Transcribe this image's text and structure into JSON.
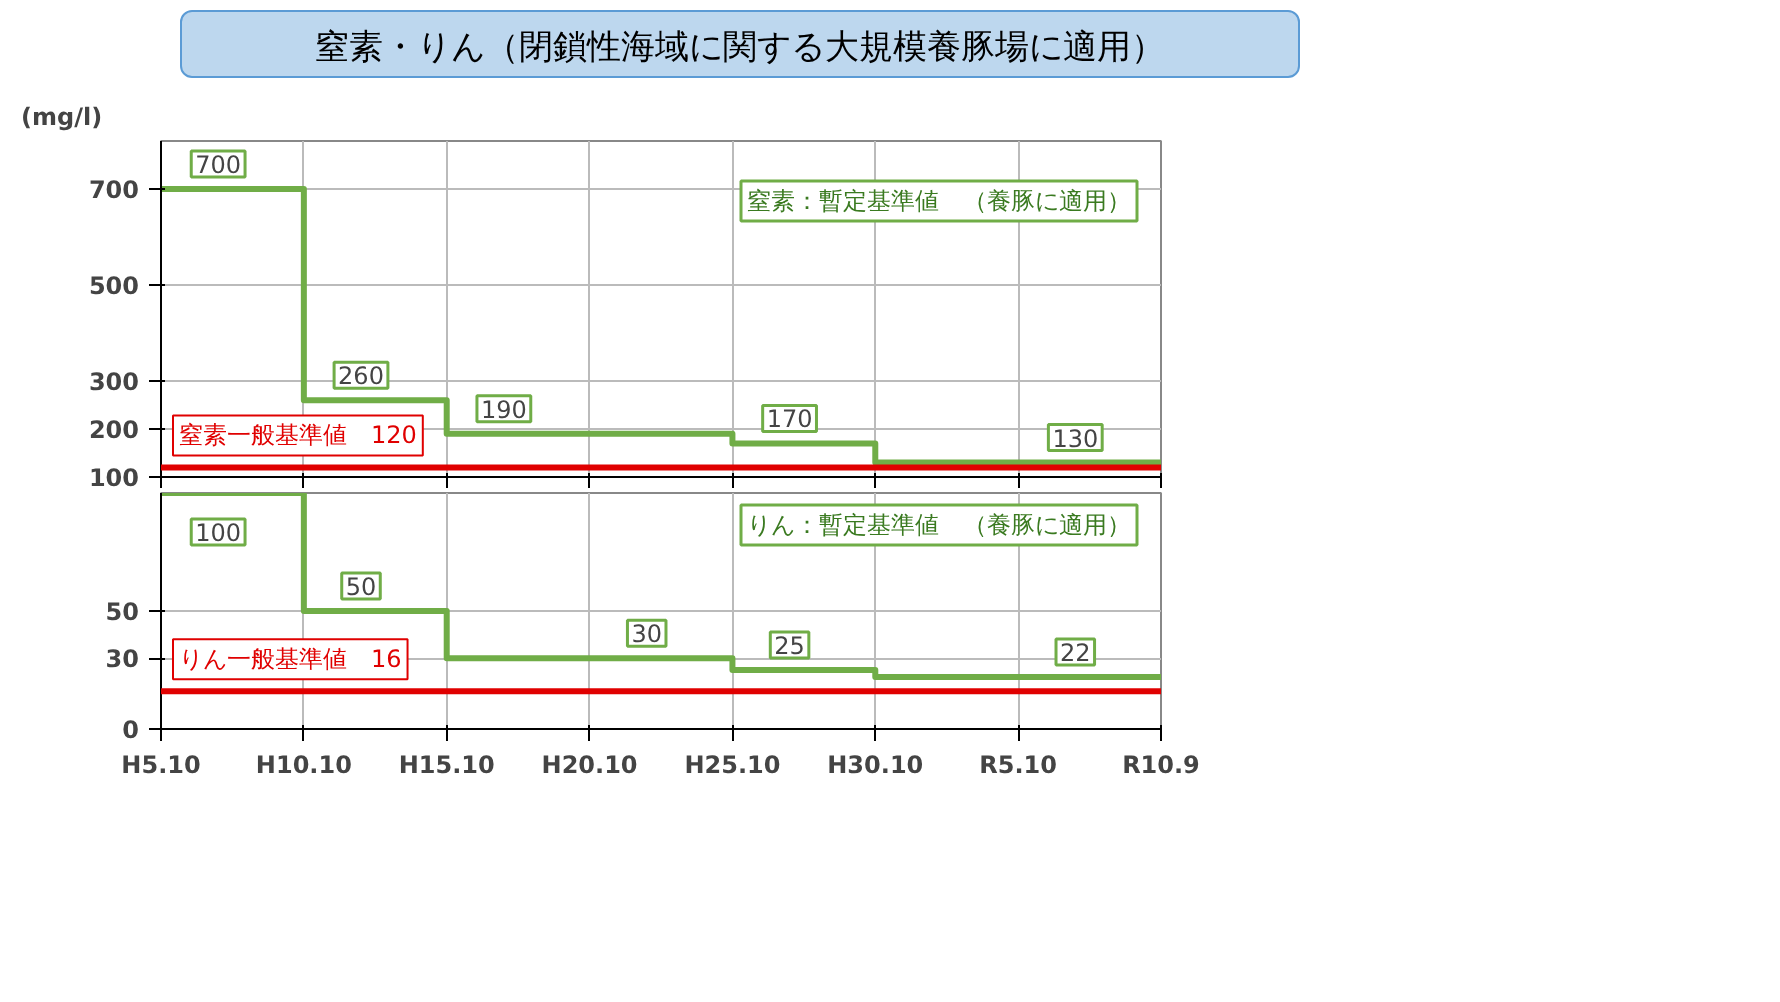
{
  "chart_data": [
    {
      "type": "step",
      "title": "窒素・りん（閉鎖性海域に関する大規模養豚場に適用）",
      "ylabel": "(mg/l)",
      "categories": [
        null,
        null,
        null,
        null,
        null,
        null,
        null,
        null
      ],
      "series": [
        {
          "name": "窒素：暫定基準値　（養豚に適用）",
          "color": "#70ad47",
          "values": [
            700,
            260,
            190,
            190,
            170,
            130,
            130,
            130
          ],
          "value_labels": [
            "700",
            "260",
            "190",
            null,
            "170",
            null,
            "130",
            null
          ]
        }
      ],
      "ylim": [
        100,
        800
      ],
      "yticks": [
        100,
        200,
        300,
        500,
        700
      ],
      "tick_labels": "y",
      "grid": true,
      "legend": false,
      "ref_lines": [
        {
          "axis": "y",
          "value": 120,
          "label": "窒素一般基準値　120",
          "color": "#e00000"
        }
      ]
    },
    {
      "type": "step",
      "categories": [
        "H5.10",
        "H10.10",
        "H15.10",
        "H20.10",
        "H25.10",
        "H30.10",
        "R5.10",
        "R10.9"
      ],
      "series": [
        {
          "name": "りん：暫定基準値　（養豚に適用）",
          "color": "#70ad47",
          "values": [
            100,
            50,
            30,
            30,
            25,
            22,
            22,
            22
          ],
          "value_labels": [
            "100",
            "50",
            null,
            "30",
            "25",
            null,
            "22",
            null
          ]
        }
      ],
      "ylim": [
        0,
        100
      ],
      "yticks": [
        0,
        30,
        50
      ],
      "grid": true,
      "legend": false,
      "ref_lines": [
        {
          "axis": "y",
          "value": 16,
          "label": "りん一般基準値　16",
          "color": "#e00000"
        }
      ]
    }
  ]
}
